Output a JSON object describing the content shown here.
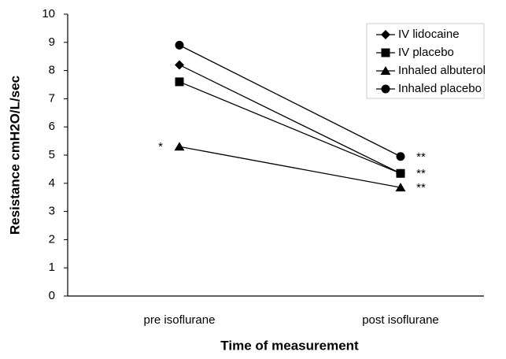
{
  "chart_data": {
    "type": "line",
    "ylabel": "Resistance cmH2O/L/sec",
    "xlabel": "Time of measurement",
    "categories": [
      "pre isoflurane",
      "post isoflurane"
    ],
    "series": [
      {
        "name": "IV lidocaine",
        "color": "#000000",
        "marker": "diamond",
        "values": [
          8.2,
          4.35
        ]
      },
      {
        "name": "IV placebo",
        "color": "#000000",
        "marker": "square",
        "values": [
          7.6,
          4.35
        ]
      },
      {
        "name": "Inhaled albuterol",
        "color": "#000000",
        "marker": "triangle",
        "values": [
          5.3,
          3.85
        ]
      },
      {
        "name": "Inhaled placebo",
        "color": "#000000",
        "marker": "circle",
        "values": [
          8.9,
          4.95
        ]
      }
    ],
    "annotations": [
      "*",
      "**",
      "**",
      "**"
    ],
    "ylim": [
      0,
      10
    ],
    "yticks": [
      0,
      1,
      2,
      3,
      4,
      5,
      6,
      7,
      8,
      9,
      10
    ],
    "grid": false,
    "legend": "top-right"
  }
}
